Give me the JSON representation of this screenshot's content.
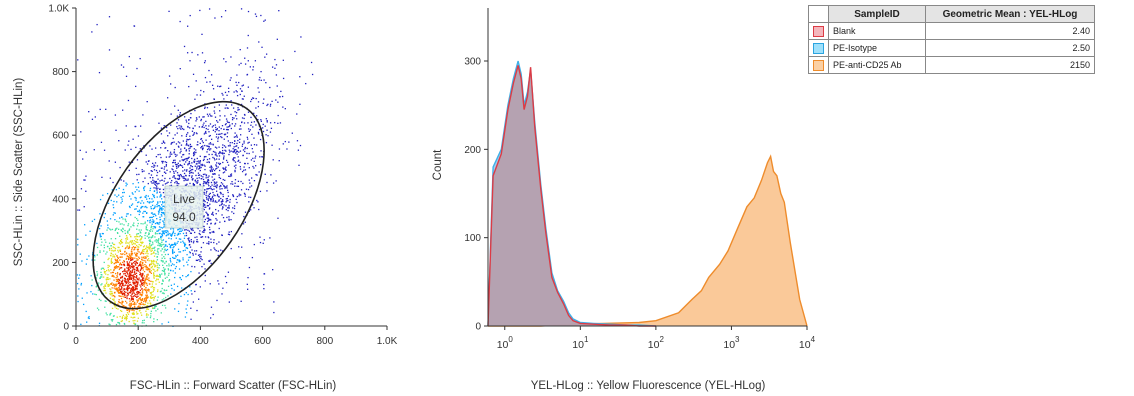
{
  "chart_data": [
    {
      "type": "scatter",
      "xlabel": "FSC-HLin :: Forward Scatter (FSC-HLin)",
      "ylabel": "SSC-HLin :: Side Scatter (SSC-HLin)",
      "xlim": [
        0,
        1000
      ],
      "ylim": [
        0,
        1000
      ],
      "x_ticks": [
        "0",
        "200",
        "400",
        "600",
        "800",
        "1.0K"
      ],
      "y_ticks": [
        "0",
        "200",
        "400",
        "600",
        "800",
        "1.0K"
      ],
      "gate": {
        "name": "Live",
        "value": "94.0",
        "center": [
          330,
          380
        ],
        "semi_axes": [
          380,
          200
        ],
        "angle_deg": 55
      },
      "density_colormap": [
        "#2020c0",
        "#00a0ff",
        "#40e0a0",
        "#e0e020",
        "#ff8000",
        "#e02000"
      ]
    },
    {
      "type": "area",
      "xlabel": "YEL-HLog :: Yellow Fluorescence (YEL-HLog)",
      "ylabel": "Count",
      "x_scale": "log",
      "xlim": [
        0.6,
        10000
      ],
      "ylim": [
        0,
        360
      ],
      "x_ticks": [
        {
          "base": "10",
          "exp": "0",
          "value": 1
        },
        {
          "base": "10",
          "exp": "1",
          "value": 10
        },
        {
          "base": "10",
          "exp": "2",
          "value": 100
        },
        {
          "base": "10",
          "exp": "3",
          "value": 1000
        },
        {
          "base": "10",
          "exp": "4",
          "value": 10000
        }
      ],
      "y_ticks": [
        0,
        100,
        200,
        300
      ],
      "series": [
        {
          "name": "PE-anti-CD25 Ab",
          "fill": "#f9bf87",
          "stroke": "#ee8c2c",
          "x": [
            0.6,
            3,
            8,
            20,
            60,
            100,
            200,
            300,
            400,
            500,
            700,
            900,
            1200,
            1600,
            2000,
            2500,
            3000,
            3300,
            3600,
            4000,
            4500,
            5000,
            6000,
            7000,
            8000,
            10000
          ],
          "y": [
            0,
            0,
            2,
            3,
            4,
            6,
            15,
            30,
            40,
            55,
            70,
            85,
            110,
            135,
            145,
            165,
            185,
            192,
            175,
            170,
            150,
            140,
            95,
            60,
            30,
            0
          ]
        },
        {
          "name": "PE-Isotype",
          "fill": "#8fc3ea",
          "stroke": "#3fb0e8",
          "x": [
            0.6,
            0.7,
            0.9,
            1.1,
            1.3,
            1.5,
            1.65,
            1.8,
            2.0,
            2.2,
            2.5,
            3.0,
            3.5,
            4.2,
            5,
            6,
            7,
            8,
            10,
            15,
            25,
            40,
            60,
            100
          ],
          "y": [
            0,
            180,
            200,
            250,
            280,
            300,
            285,
            250,
            265,
            290,
            230,
            160,
            110,
            60,
            40,
            28,
            15,
            8,
            4,
            3,
            2,
            1,
            1,
            0
          ]
        },
        {
          "name": "Blank",
          "fill": "#b99aa6",
          "stroke": "#dc3b45",
          "x": [
            0.6,
            0.7,
            0.9,
            1.1,
            1.3,
            1.5,
            1.65,
            1.8,
            2.0,
            2.2,
            2.5,
            3.0,
            3.5,
            4.2,
            5,
            6,
            7,
            8,
            10,
            15,
            25,
            40,
            60,
            100
          ],
          "y": [
            0,
            170,
            195,
            245,
            275,
            295,
            280,
            245,
            260,
            293,
            225,
            155,
            105,
            55,
            38,
            25,
            12,
            6,
            3,
            2,
            1,
            1,
            0,
            0
          ]
        }
      ]
    }
  ],
  "table": {
    "headers": [
      "SampleID",
      "Geometric Mean : YEL-HLog"
    ],
    "rows": [
      {
        "sample": "Blank",
        "value": "2.40",
        "swatch_fill": "#f4b6bc",
        "swatch_stroke": "#dc3b45"
      },
      {
        "sample": "PE-Isotype",
        "value": "2.50",
        "swatch_fill": "#9ee0fb",
        "swatch_stroke": "#2aa4e0"
      },
      {
        "sample": "PE-anti-CD25 Ab",
        "value": "2150",
        "swatch_fill": "#fbd0a4",
        "swatch_stroke": "#ee8c2c"
      }
    ]
  }
}
